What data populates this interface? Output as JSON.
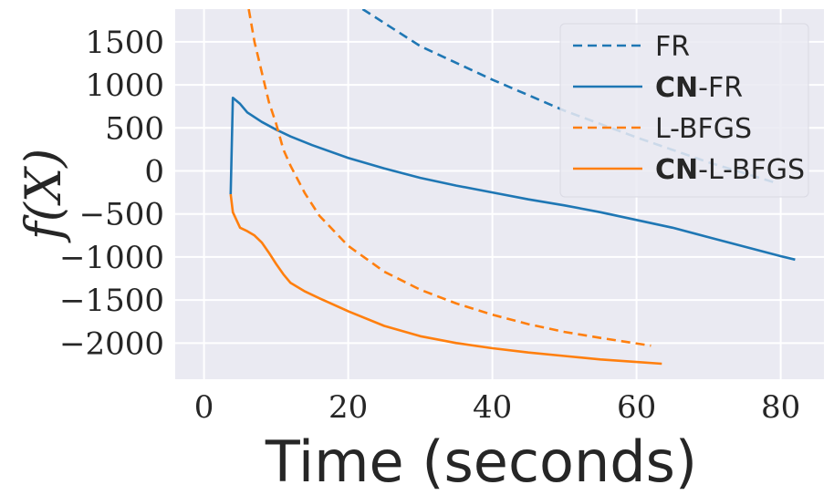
{
  "chart_data": {
    "type": "line",
    "xlabel": "Time (seconds)",
    "ylabel": "f(X)",
    "xlim": [
      -4,
      86
    ],
    "ylim": [
      -2420,
      1880
    ],
    "xticks": [
      0,
      20,
      40,
      60,
      80
    ],
    "xtick_labels": [
      "0",
      "20",
      "40",
      "60",
      "80"
    ],
    "yticks": [
      1500,
      1000,
      500,
      0,
      -500,
      -1000,
      -1500,
      -2000
    ],
    "ytick_labels": [
      "1500",
      "1000",
      "500",
      "0",
      "−500",
      "−1000",
      "−1500",
      "−2000"
    ],
    "grid": true,
    "legend_position": "top-right",
    "colors": {
      "blue": "#1f77b4",
      "orange": "#ff7f0e",
      "background": "#eaeaf2",
      "grid": "#ffffff"
    },
    "series": [
      {
        "name": "FR",
        "name_bold": "",
        "name_rest": "FR",
        "color": "#1f77b4",
        "dash": true,
        "x": [
          22,
          30,
          40,
          50,
          60,
          70,
          79
        ],
        "y": [
          1880,
          1450,
          1060,
          700,
          390,
          100,
          -130
        ]
      },
      {
        "name": "CN-FR",
        "name_bold": "CN",
        "name_rest": "-FR",
        "color": "#1f77b4",
        "dash": false,
        "x": [
          3.7,
          4,
          5,
          6,
          8,
          10,
          12,
          15,
          20,
          25,
          30,
          35,
          40,
          45,
          50,
          55,
          60,
          65,
          70,
          75,
          80,
          82
        ],
        "y": [
          -270,
          850,
          780,
          680,
          570,
          480,
          400,
          300,
          150,
          30,
          -80,
          -170,
          -250,
          -330,
          -400,
          -480,
          -570,
          -660,
          -770,
          -880,
          -990,
          -1030
        ]
      },
      {
        "name": "L-BFGS",
        "name_bold": "",
        "name_rest": "L-BFGS",
        "color": "#ff7f0e",
        "dash": true,
        "x": [
          6.2,
          7,
          8,
          9,
          10,
          11,
          12,
          14,
          16,
          20,
          25,
          30,
          35,
          40,
          45,
          50,
          55,
          62
        ],
        "y": [
          1880,
          1500,
          1150,
          800,
          550,
          250,
          60,
          -260,
          -520,
          -870,
          -1170,
          -1380,
          -1540,
          -1670,
          -1780,
          -1870,
          -1940,
          -2030
        ]
      },
      {
        "name": "CN-L-BFGS",
        "name_bold": "CN",
        "name_rest": "-L-BFGS",
        "color": "#ff7f0e",
        "dash": false,
        "x": [
          3.7,
          4,
          5,
          6,
          7,
          8,
          9,
          10,
          11,
          12,
          14,
          16,
          20,
          25,
          30,
          35,
          40,
          45,
          50,
          55,
          60,
          63.5
        ],
        "y": [
          -270,
          -480,
          -660,
          -700,
          -750,
          -830,
          -950,
          -1080,
          -1200,
          -1300,
          -1400,
          -1480,
          -1630,
          -1800,
          -1920,
          -2000,
          -2060,
          -2110,
          -2150,
          -2190,
          -2220,
          -2240
        ]
      }
    ]
  }
}
